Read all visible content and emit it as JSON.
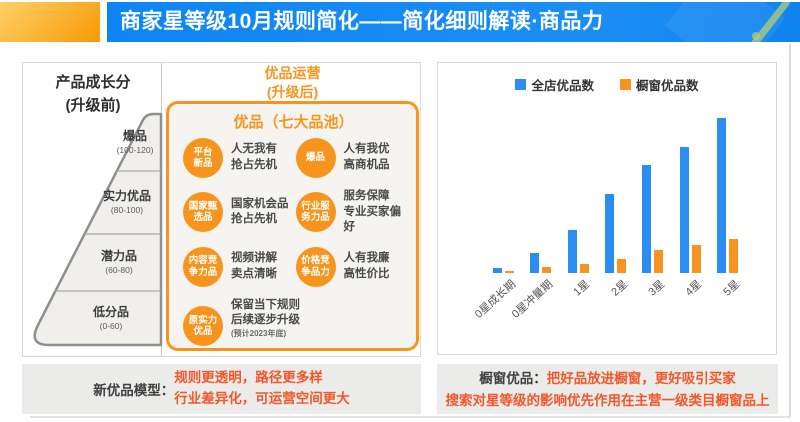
{
  "header": {
    "title": "商家星等级10月规则简化——简化细则解读·商品力"
  },
  "colors": {
    "banner_blue": "#0f85f3",
    "accent_orange": "#f7941d",
    "note_orange": "#f2562a",
    "bar_blue": "#2b8df2",
    "bar_orange": "#f79421"
  },
  "left_panel": {
    "title_line1": "产品成长分",
    "title_line2": "(升级前)",
    "funnel_tiers": [
      {
        "name": "爆品",
        "range": "(100-120)"
      },
      {
        "name": "实力优品",
        "range": "(80-100)"
      },
      {
        "name": "潜力品",
        "range": "(60-80)"
      },
      {
        "name": "低分品",
        "range": "(0-60)"
      }
    ],
    "upgrade": {
      "title_line1": "优品运营",
      "title_line2": "(升级后)",
      "box_title": "优品（七大品池）",
      "items": [
        {
          "circle": "平台\n新品",
          "desc": "人无我有\n抢占先机"
        },
        {
          "circle": "爆品",
          "desc": "人有我优\n高商机品"
        },
        {
          "circle": "国家甄\n选品",
          "desc": "国家机会品\n抢占先机"
        },
        {
          "circle": "行业服\n务力品",
          "desc": "服务保障\n专业买家偏好"
        },
        {
          "circle": "内容竞\n争力品",
          "desc": "视频讲解\n卖点清晰"
        },
        {
          "circle": "价格竞\n争品力",
          "desc": "人有我廉\n高性价比"
        },
        {
          "circle": "原实力\n优品",
          "desc": "保留当下规则\n后续逐步升级",
          "note": "(预计2023年底)"
        }
      ]
    },
    "note": {
      "label": "新优品模型：",
      "line1": "规则更透明，路径更多样",
      "line2": "行业差异化，可运营空间更大"
    }
  },
  "right_panel": {
    "note": {
      "label": "橱窗优品：",
      "line1": "把好品放进橱窗，更好吸引买家",
      "line2": "搜索对星等级的影响优先作用在主营一级类目橱窗品上"
    }
  },
  "chart_data": {
    "type": "bar",
    "title": "",
    "categories": [
      "0星成长期",
      "0星冲量期",
      "1星",
      "2星",
      "3星",
      "4星",
      "5星"
    ],
    "series": [
      {
        "name": "全店优品数",
        "color": "#2b8df2",
        "values": [
          3,
          13,
          28,
          51,
          70,
          81,
          100
        ]
      },
      {
        "name": "橱窗优品数",
        "color": "#f79421",
        "values": [
          1,
          4,
          6,
          9,
          15,
          18,
          22
        ]
      }
    ],
    "xlabel": "",
    "ylabel": "",
    "ylim": [
      0,
      100
    ],
    "grid": false,
    "legend_position": "top",
    "note": "y-axis unlabeled; values are relative units estimated from bar heights"
  }
}
